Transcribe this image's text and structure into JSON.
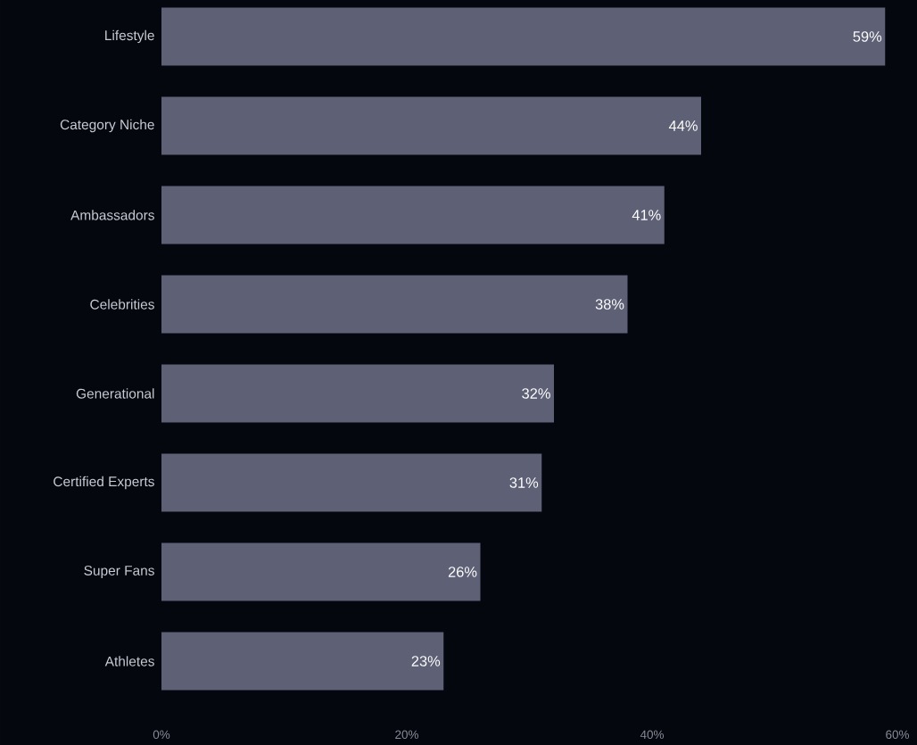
{
  "chart_data": {
    "type": "bar",
    "orientation": "horizontal",
    "categories": [
      "Lifestyle",
      "Category Niche",
      "Ambassadors",
      "Celebrities",
      "Generational",
      "Certified Experts",
      "Super Fans",
      "Athletes"
    ],
    "values": [
      59,
      44,
      41,
      38,
      32,
      31,
      26,
      23
    ],
    "value_labels": [
      "59%",
      "44%",
      "41%",
      "38%",
      "32%",
      "31%",
      "26%",
      "23%"
    ],
    "color": "#5e6076",
    "xlim": [
      0,
      60
    ],
    "xticks": [
      {
        "value": 0,
        "label": "0%"
      },
      {
        "value": 20,
        "label": "20%"
      },
      {
        "value": 40,
        "label": "40%"
      },
      {
        "value": 60,
        "label": "60%"
      }
    ],
    "grid": false
  }
}
